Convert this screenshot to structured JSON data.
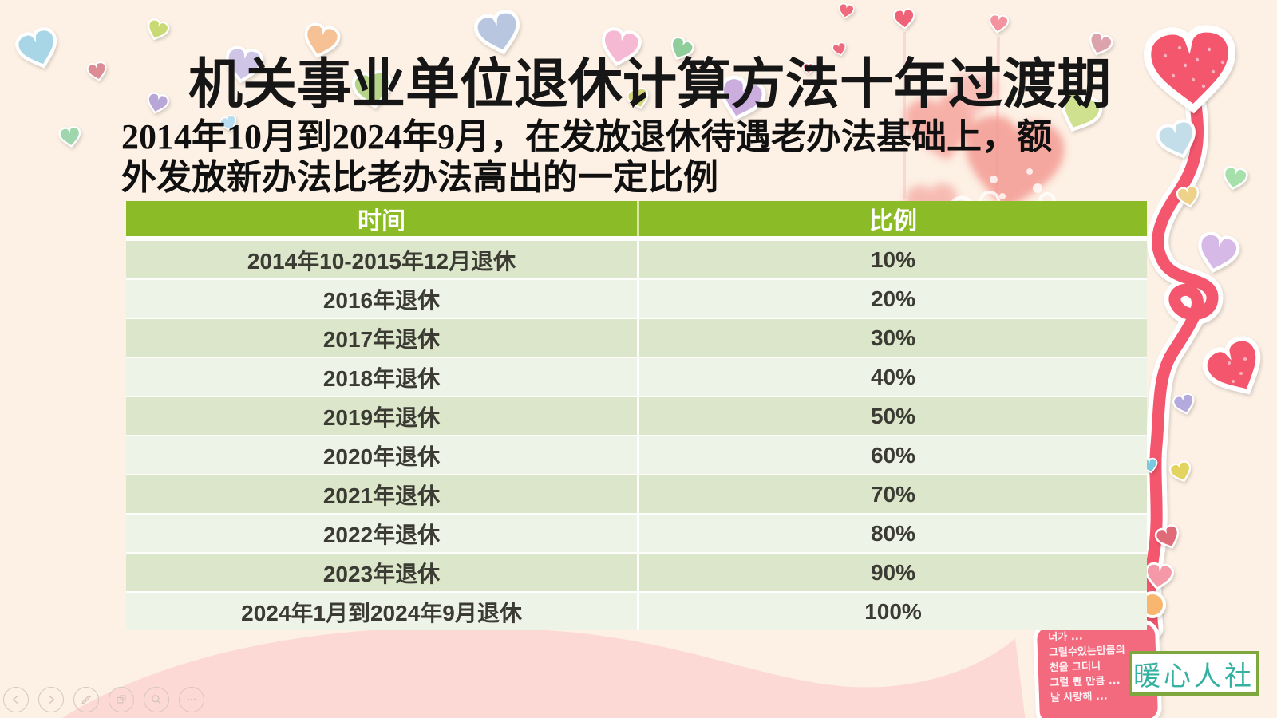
{
  "slide": {
    "title": "机关事业单位退休计算方法十年过渡期",
    "subtitle_line1": "2014年10月到2024年9月，在发放退休待遇老办法基础上，额",
    "subtitle_line2": "外发放新办法比老办法高出的一定比例"
  },
  "table": {
    "headers": [
      "时间",
      "比例"
    ],
    "rows": [
      [
        "2014年10-2015年12月退休",
        "10%"
      ],
      [
        "2016年退休",
        "20%"
      ],
      [
        "2017年退休",
        "30%"
      ],
      [
        "2018年退休",
        "40%"
      ],
      [
        "2019年退休",
        "50%"
      ],
      [
        "2020年退休",
        "60%"
      ],
      [
        "2021年退休",
        "70%"
      ],
      [
        "2022年退休",
        "80%"
      ],
      [
        "2023年退休",
        "90%"
      ],
      [
        "2024年1月到2024年9月退休",
        "100%"
      ]
    ]
  },
  "chart_data": {
    "type": "table",
    "title": "机关事业单位退休计算方法十年过渡期",
    "columns": [
      "时间",
      "比例"
    ],
    "categories": [
      "2014年10-2015年12月退休",
      "2016年退休",
      "2017年退休",
      "2018年退休",
      "2019年退休",
      "2020年退休",
      "2021年退休",
      "2022年退休",
      "2023年退休",
      "2024年1月到2024年9月退休"
    ],
    "values_percent": [
      10,
      20,
      30,
      40,
      50,
      60,
      70,
      80,
      90,
      100
    ]
  },
  "watermark": {
    "text": "暖心人社"
  },
  "note_card": {
    "lines": [
      "너가 ...",
      "그럴수있는만큼의",
      "천을 그더니",
      "그럴 뺀 만큼 ...",
      "날 사랑해 ..."
    ]
  },
  "controls": {
    "items": [
      {
        "icon": "prev-arrow-icon"
      },
      {
        "icon": "next-arrow-icon"
      },
      {
        "icon": "pen-icon"
      },
      {
        "icon": "slides-panel-icon"
      },
      {
        "icon": "magnifier-icon"
      },
      {
        "icon": "ellipsis-icon"
      }
    ]
  },
  "colors": {
    "background_cream": "#fdf0e4",
    "header_green": "#8cbb28",
    "row_odd_green": "#dbe6cb",
    "row_even_green": "#eef3e8",
    "accent_red": "#f4566d",
    "wave_pink": "#fcd9d4",
    "card_pink": "#f3697e",
    "logo_teal": "#35b1a1",
    "logo_border_green": "#7ea73e"
  }
}
